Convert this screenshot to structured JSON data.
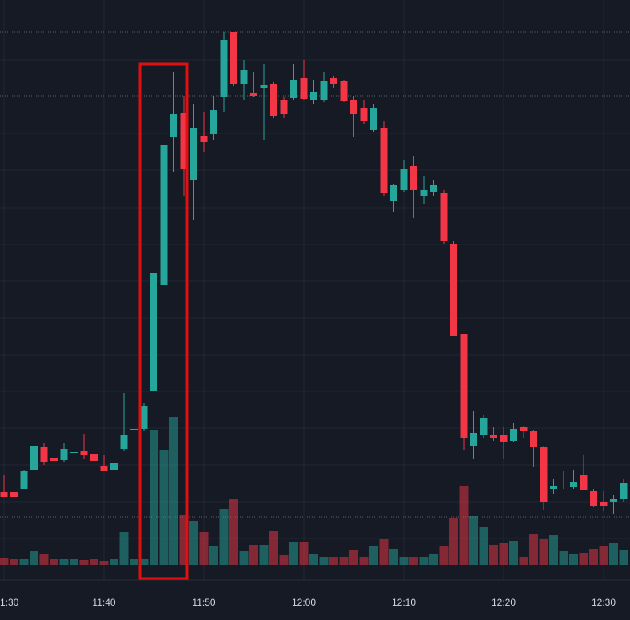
{
  "chart_data": {
    "type": "candlestick",
    "categories": [
      "1:30",
      null,
      null,
      null,
      null,
      null,
      null,
      null,
      null,
      null,
      "11:40",
      null,
      null,
      null,
      null,
      null,
      null,
      null,
      null,
      null,
      "11:50",
      null,
      null,
      null,
      null,
      null,
      null,
      null,
      null,
      null,
      "12:00",
      null,
      null,
      null,
      null,
      null,
      null,
      null,
      null,
      null,
      "12:10",
      null,
      null,
      null,
      null,
      null,
      null,
      null,
      null,
      null,
      "12:20",
      null,
      null,
      null,
      null,
      null,
      null,
      null,
      null,
      null,
      "12:30",
      null,
      null
    ],
    "open": [
      160,
      160,
      164,
      188,
      216,
      203,
      200,
      210,
      211,
      208,
      193,
      188,
      214,
      239,
      239,
      286,
      419,
      604,
      634,
      551,
      606,
      608,
      654,
      736,
      671,
      660,
      666,
      671,
      651,
      653,
      678,
      651,
      651,
      678,
      674,
      651,
      641,
      613,
      616,
      524,
      538,
      568,
      531,
      536,
      534,
      471,
      358,
      218,
      231,
      231,
      231,
      224,
      241,
      236,
      216,
      164,
      172,
      166,
      182,
      162,
      148,
      148,
      151
    ],
    "high": [
      181,
      176,
      188,
      246,
      221,
      213,
      221,
      214,
      233,
      214,
      206,
      208,
      284,
      251,
      271,
      478,
      594,
      686,
      656,
      646,
      636,
      656,
      736,
      736,
      701,
      686,
      696,
      673,
      654,
      696,
      701,
      676,
      686,
      681,
      676,
      656,
      651,
      646,
      624,
      546,
      576,
      581,
      556,
      551,
      538,
      474,
      358,
      261,
      256,
      241,
      241,
      246,
      243,
      238,
      218,
      176,
      186,
      188,
      206,
      164,
      161,
      156,
      176
    ],
    "low": [
      154,
      151,
      164,
      186,
      194,
      198,
      198,
      206,
      201,
      198,
      186,
      186,
      211,
      223,
      236,
      284,
      419,
      561,
      531,
      501,
      586,
      601,
      636,
      668,
      651,
      654,
      601,
      628,
      628,
      651,
      651,
      646,
      648,
      666,
      648,
      604,
      621,
      611,
      531,
      511,
      536,
      503,
      521,
      531,
      471,
      356,
      213,
      201,
      228,
      224,
      201,
      223,
      228,
      191,
      138,
      158,
      164,
      164,
      163,
      141,
      136,
      133,
      148
    ],
    "close": [
      154,
      154,
      186,
      218,
      198,
      199,
      214,
      210,
      206,
      199,
      186,
      196,
      231,
      239,
      268,
      434,
      594,
      633,
      564,
      616,
      598,
      638,
      726,
      671,
      688,
      656,
      669,
      631,
      633,
      676,
      652,
      661,
      674,
      671,
      650,
      633,
      624,
      641,
      534,
      544,
      564,
      538,
      538,
      544,
      474,
      356,
      228,
      234,
      253,
      228,
      223,
      239,
      236,
      216,
      148,
      168,
      172,
      173,
      163,
      143,
      143,
      151,
      171
    ],
    "volume": [
      9,
      7,
      7,
      17,
      13,
      7,
      7,
      7,
      6,
      7,
      5,
      7,
      41,
      7,
      7,
      169,
      144,
      185,
      62,
      55,
      41,
      24,
      70,
      82,
      17,
      25,
      25,
      43,
      12,
      29,
      29,
      14,
      10,
      10,
      10,
      19,
      10,
      24,
      32,
      20,
      10,
      10,
      10,
      14,
      24,
      59,
      99,
      61,
      47,
      25,
      27,
      30,
      10,
      39,
      33,
      37,
      17,
      14,
      15,
      20,
      23,
      27,
      19
    ],
    "ylim": [
      0,
      776
    ],
    "volume_ylim": [
      0,
      707
    ],
    "up_color": "#26a69a",
    "down_color": "#f23645"
  }
}
